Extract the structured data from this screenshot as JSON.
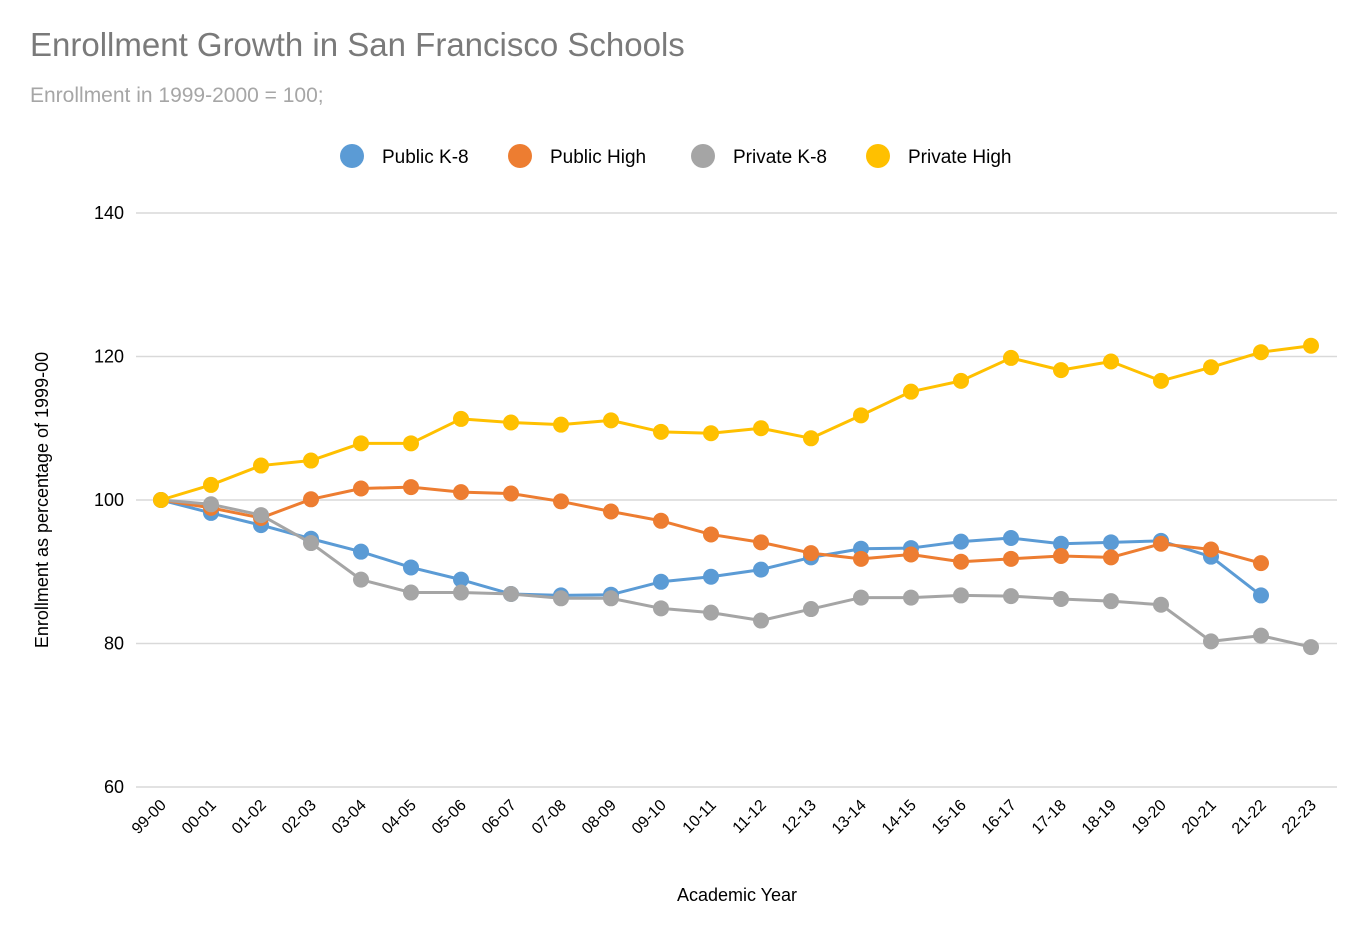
{
  "chart_data": {
    "type": "line",
    "title": "Enrollment Growth in San Francisco Schools",
    "subtitle": "Enrollment in 1999-2000 = 100;",
    "xlabel": "Academic Year",
    "ylabel": "Enrollment as percentage of 1999-00",
    "ylim": [
      60,
      140
    ],
    "yticks": [
      60,
      80,
      100,
      120,
      140
    ],
    "grid": true,
    "legend_position": "top",
    "categories": [
      "99-00",
      "00-01",
      "01-02",
      "02-03",
      "03-04",
      "04-05",
      "05-06",
      "06-07",
      "07-08",
      "08-09",
      "09-10",
      "10-11",
      "11-12",
      "12-13",
      "13-14",
      "14-15",
      "15-16",
      "16-17",
      "17-18",
      "18-19",
      "19-20",
      "20-21",
      "21-22",
      "22-23"
    ],
    "series": [
      {
        "name": "Public K-8",
        "color": "#5b9bd5",
        "values": [
          100,
          98.2,
          96.5,
          94.6,
          92.8,
          90.6,
          88.9,
          86.9,
          86.7,
          86.8,
          88.6,
          89.3,
          90.3,
          92.0,
          93.2,
          93.3,
          94.2,
          94.7,
          93.9,
          94.1,
          94.3,
          92.1,
          86.7,
          null
        ]
      },
      {
        "name": "Public High",
        "color": "#ed7d31",
        "values": [
          100,
          98.9,
          97.5,
          100.1,
          101.6,
          101.8,
          101.1,
          100.9,
          99.8,
          98.4,
          97.1,
          95.2,
          94.1,
          92.6,
          91.8,
          92.4,
          91.4,
          91.8,
          92.2,
          92.0,
          93.9,
          93.1,
          91.2,
          null
        ]
      },
      {
        "name": "Private K-8",
        "color": "#a5a5a5",
        "values": [
          100,
          99.4,
          97.9,
          94.0,
          88.9,
          87.1,
          87.1,
          86.9,
          86.3,
          86.3,
          84.9,
          84.3,
          83.2,
          84.8,
          86.4,
          86.4,
          86.7,
          86.6,
          86.2,
          85.9,
          85.4,
          80.3,
          81.1,
          79.5
        ]
      },
      {
        "name": "Private High",
        "color": "#ffc000",
        "values": [
          100,
          102.1,
          104.8,
          105.5,
          107.9,
          107.9,
          111.3,
          110.8,
          110.5,
          111.1,
          109.5,
          109.3,
          110.0,
          108.6,
          111.8,
          115.1,
          116.6,
          119.8,
          118.1,
          119.3,
          116.6,
          118.5,
          120.6,
          121.5
        ]
      }
    ]
  }
}
